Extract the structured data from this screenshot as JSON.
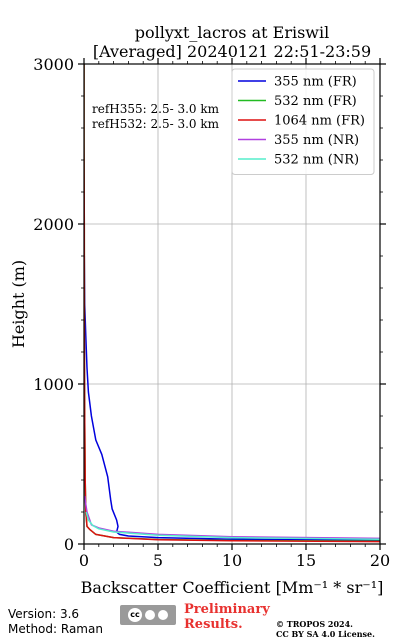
{
  "chart_data": {
    "type": "line",
    "title_line1": "pollyxt_lacros at Eriswil",
    "title_line2": "[Averaged] 20240121 22:51-23:59",
    "xlabel": "Backscatter Coefficient [Mm⁻¹ * sr⁻¹]",
    "ylabel": "Height (m)",
    "xlim": [
      0,
      20
    ],
    "ylim": [
      0,
      3000
    ],
    "xticks": [
      "0",
      "5",
      "10",
      "15",
      "20"
    ],
    "yticks": [
      "0",
      "1000",
      "2000",
      "3000"
    ],
    "grid": true,
    "legend_position": "top-right",
    "annotations": [
      "refH355:  2.5- 3.0 km",
      "refH532:  2.5- 3.0 km"
    ],
    "series": [
      {
        "name": "355 nm (FR)",
        "color": "#0000dd",
        "x": [
          20,
          10,
          5,
          3,
          2.4,
          2.2,
          2.3,
          2.2,
          1.9,
          1.8,
          1.6,
          1.2,
          0.8,
          0.5,
          0.3,
          0.2,
          0.12,
          0.05,
          0.02
        ],
        "y": [
          25,
          30,
          40,
          50,
          60,
          75,
          110,
          150,
          220,
          280,
          420,
          560,
          650,
          800,
          950,
          1100,
          1300,
          1500,
          1800
        ]
      },
      {
        "name": "532 nm (FR)",
        "color": "#22bb22",
        "x": [
          20,
          10,
          5,
          2,
          0.8,
          0.4,
          0.2,
          0.12,
          0.08,
          0.05,
          0.03,
          0.02,
          0.0,
          0.0
        ],
        "y": [
          18,
          22,
          28,
          40,
          60,
          90,
          110,
          200,
          400,
          800,
          1200,
          2000,
          2500,
          3000
        ]
      },
      {
        "name": "1064 nm (FR)",
        "color": "#dd1111",
        "x": [
          20,
          10,
          5,
          2,
          0.8,
          0.4,
          0.2,
          0.12,
          0.08,
          0.05,
          0.03,
          0.02,
          0.0,
          0.0
        ],
        "y": [
          15,
          20,
          26,
          40,
          60,
          90,
          110,
          200,
          400,
          800,
          1200,
          2000,
          2500,
          3000
        ]
      },
      {
        "name": "355 nm (NR)",
        "color": "#b040e0",
        "x": [
          20,
          10,
          5,
          2,
          1,
          0.5,
          0.2,
          0.1,
          0.05
        ],
        "y": [
          35,
          45,
          60,
          80,
          100,
          120,
          200,
          260,
          300
        ]
      },
      {
        "name": "532 nm (NR)",
        "color": "#55eecc",
        "x": [
          20,
          10,
          5,
          2,
          1,
          0.6,
          0.3,
          0.15
        ],
        "y": [
          30,
          40,
          55,
          75,
          95,
          115,
          150,
          200
        ]
      }
    ]
  },
  "footer": {
    "version": "Version: 3.6",
    "method": "Method: Raman",
    "preliminary_line1": "Preliminary",
    "preliminary_line2": "Results.",
    "copyright_line1": "© TROPOS 2024.",
    "copyright_line2": "CC BY SA 4.0 License.",
    "logo_text": "cc"
  }
}
